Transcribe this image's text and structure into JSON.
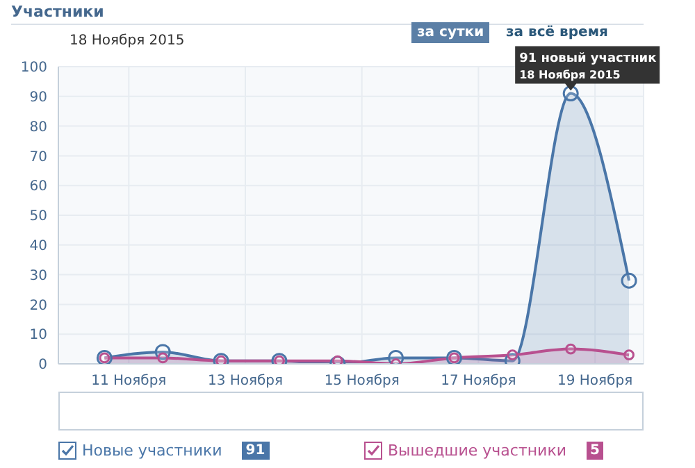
{
  "chart_data": {
    "type": "area",
    "title": "Участники",
    "subtitle": "18 Ноября 2015",
    "x": [
      "2015-11-10T14:00",
      "2015-11-11T14:00",
      "2015-11-12T14:00",
      "2015-11-13T14:00",
      "2015-11-14T14:00",
      "2015-11-15T14:00",
      "2015-11-16T14:00",
      "2015-11-17T14:00",
      "2015-11-18T14:00",
      "2015-11-19T14:00"
    ],
    "series": [
      {
        "name": "Новые участники",
        "color": "#4a76a8",
        "values": [
          2,
          4,
          1,
          1,
          0,
          2,
          2,
          1,
          91,
          28
        ]
      },
      {
        "name": "Вышедшие участники",
        "color": "#b8508f",
        "values": [
          2,
          2,
          1,
          1,
          1,
          0,
          2,
          3,
          5,
          3
        ]
      }
    ],
    "xlim": [
      "2015-11-09T19:00",
      "2015-11-19T20:00"
    ],
    "xticks": [
      {
        "value": "2015-11-11",
        "label": "11 Ноября"
      },
      {
        "value": "2015-11-13",
        "label": "13 Ноября"
      },
      {
        "value": "2015-11-15",
        "label": "15 Ноября"
      },
      {
        "value": "2015-11-17",
        "label": "17 Ноября"
      },
      {
        "value": "2015-11-19",
        "label": "19 Ноября"
      }
    ],
    "ylim": [
      0,
      100
    ],
    "yticks": [
      0,
      10,
      20,
      30,
      40,
      50,
      60,
      70,
      80,
      90,
      100
    ],
    "grid": true,
    "legend": "bottom",
    "marker": "circle",
    "annotations": [
      "за сутки",
      "за всё время",
      {
        "text": "91 новый участник\n18 Ноября 2015",
        "x": "2015-11-18T14:00",
        "y": 91
      },
      "91",
      "5"
    ]
  }
}
